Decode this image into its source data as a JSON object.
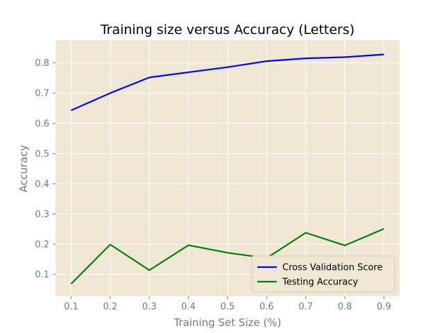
{
  "chart_data": {
    "type": "line",
    "title": "Training size versus Accuracy (Letters)",
    "xlabel": "Training Set Size (%)",
    "ylabel": "Accuracy",
    "x": [
      0.1,
      0.2,
      0.3,
      0.4,
      0.5,
      0.6,
      0.7,
      0.8,
      0.9
    ],
    "xticks": [
      "0.1",
      "0.2",
      "0.3",
      "0.4",
      "0.5",
      "0.6",
      "0.7",
      "0.8",
      "0.9"
    ],
    "yticks": [
      "0.1",
      "0.2",
      "0.3",
      "0.4",
      "0.5",
      "0.6",
      "0.7",
      "0.8"
    ],
    "xlim": [
      0.06,
      0.94
    ],
    "ylim": [
      0.028,
      0.875
    ],
    "grid": true,
    "legend_position": "lower-right",
    "background_color": "#efe7d4",
    "grid_color": "#ffffff",
    "series": [
      {
        "name": "Cross Validation Score",
        "color": "#0000ff",
        "values": [
          0.643,
          0.7,
          0.752,
          0.769,
          0.786,
          0.806,
          0.815,
          0.819,
          0.828
        ]
      },
      {
        "name": "Testing Accuracy",
        "color": "#008000",
        "values": [
          0.069,
          0.199,
          0.114,
          0.197,
          0.172,
          0.154,
          0.238,
          0.196,
          0.251
        ]
      }
    ]
  }
}
